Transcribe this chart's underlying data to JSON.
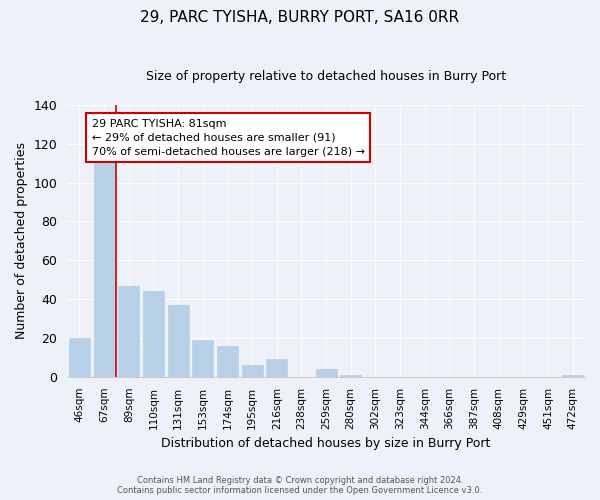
{
  "title": "29, PARC TYISHA, BURRY PORT, SA16 0RR",
  "subtitle": "Size of property relative to detached houses in Burry Port",
  "xlabel": "Distribution of detached houses by size in Burry Port",
  "ylabel": "Number of detached properties",
  "bar_labels": [
    "46sqm",
    "67sqm",
    "89sqm",
    "110sqm",
    "131sqm",
    "153sqm",
    "174sqm",
    "195sqm",
    "216sqm",
    "238sqm",
    "259sqm",
    "280sqm",
    "302sqm",
    "323sqm",
    "344sqm",
    "366sqm",
    "387sqm",
    "408sqm",
    "429sqm",
    "451sqm",
    "472sqm"
  ],
  "bar_values": [
    20,
    110,
    47,
    44,
    37,
    19,
    16,
    6,
    9,
    0,
    4,
    1,
    0,
    0,
    0,
    0,
    0,
    0,
    0,
    0,
    1
  ],
  "bar_color": "#b8cfe8",
  "marker_line_color": "#cc0000",
  "ylim": [
    0,
    140
  ],
  "yticks": [
    0,
    20,
    40,
    60,
    80,
    100,
    120,
    140
  ],
  "annotation_title": "29 PARC TYISHA: 81sqm",
  "annotation_line1": "← 29% of detached houses are smaller (91)",
  "annotation_line2": "70% of semi-detached houses are larger (218) →",
  "footer_line1": "Contains HM Land Registry data © Crown copyright and database right 2024.",
  "footer_line2": "Contains public sector information licensed under the Open Government Licence v3.0.",
  "bg_color": "#eef2f8"
}
